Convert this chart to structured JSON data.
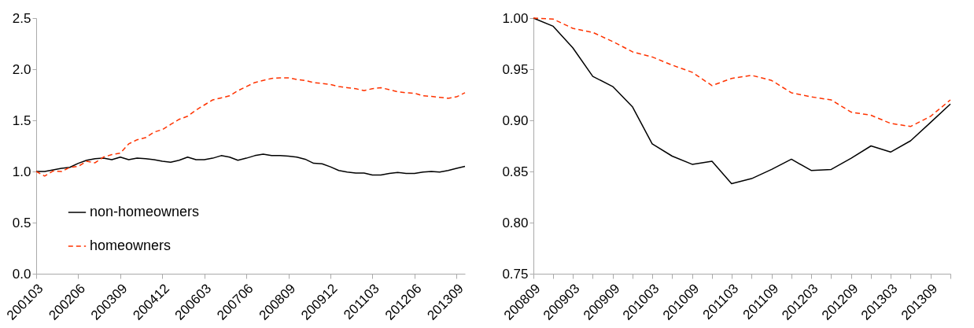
{
  "chart_data": [
    {
      "type": "line",
      "x": [
        "2001-03",
        "2001-06",
        "2001-09",
        "2001-12",
        "2002-03",
        "2002-06",
        "2002-09",
        "2002-12",
        "2003-03",
        "2003-06",
        "2003-09",
        "2003-12",
        "2004-03",
        "2004-06",
        "2004-09",
        "2004-12",
        "2005-03",
        "2005-06",
        "2005-09",
        "2005-12",
        "2006-03",
        "2006-06",
        "2006-09",
        "2006-12",
        "2007-03",
        "2007-06",
        "2007-09",
        "2007-12",
        "2008-03",
        "2008-06",
        "2008-09",
        "2008-12",
        "2009-03",
        "2009-06",
        "2009-09",
        "2009-12",
        "2010-03",
        "2010-06",
        "2010-09",
        "2010-12",
        "2011-03",
        "2011-06",
        "2011-09",
        "2011-12",
        "2012-03",
        "2012-06",
        "2012-09",
        "2012-12",
        "2013-03",
        "2013-06",
        "2013-09",
        "2013-12"
      ],
      "series": [
        {
          "name": "non-homeowners",
          "color": "#000000",
          "line_style": "solid",
          "values": [
            1.0,
            1.0,
            1.015,
            1.03,
            1.04,
            1.08,
            1.11,
            1.125,
            1.13,
            1.115,
            1.14,
            1.115,
            1.13,
            1.125,
            1.115,
            1.1,
            1.09,
            1.11,
            1.14,
            1.115,
            1.115,
            1.13,
            1.155,
            1.14,
            1.11,
            1.13,
            1.155,
            1.17,
            1.155,
            1.155,
            1.15,
            1.14,
            1.12,
            1.08,
            1.075,
            1.045,
            1.01,
            0.995,
            0.985,
            0.985,
            0.965,
            0.965,
            0.98,
            0.99,
            0.98,
            0.98,
            0.995,
            1.0,
            0.995,
            1.01,
            1.03,
            1.05
          ]
        },
        {
          "name": "homeowners",
          "color": "#ff3300",
          "line_style": "dashed",
          "values": [
            1.0,
            0.955,
            1.005,
            1.0,
            1.04,
            1.05,
            1.1,
            1.085,
            1.14,
            1.165,
            1.18,
            1.27,
            1.31,
            1.33,
            1.385,
            1.41,
            1.46,
            1.51,
            1.54,
            1.6,
            1.65,
            1.7,
            1.72,
            1.74,
            1.79,
            1.83,
            1.87,
            1.89,
            1.91,
            1.915,
            1.915,
            1.9,
            1.89,
            1.87,
            1.86,
            1.85,
            1.83,
            1.82,
            1.81,
            1.79,
            1.81,
            1.82,
            1.8,
            1.78,
            1.77,
            1.765,
            1.74,
            1.735,
            1.725,
            1.715,
            1.73,
            1.77
          ]
        }
      ],
      "xlim": [
        "2001-03",
        "2013-12"
      ],
      "xticks": [
        {
          "value": "2001-03",
          "label": "200103"
        },
        {
          "value": "2002-06",
          "label": "200206"
        },
        {
          "value": "2003-09",
          "label": "200309"
        },
        {
          "value": "2004-12",
          "label": "200412"
        },
        {
          "value": "2006-03",
          "label": "200603"
        },
        {
          "value": "2007-06",
          "label": "200706"
        },
        {
          "value": "2008-09",
          "label": "200809"
        },
        {
          "value": "2009-12",
          "label": "200912"
        },
        {
          "value": "2011-03",
          "label": "201103"
        },
        {
          "value": "2012-06",
          "label": "201206"
        },
        {
          "value": "2013-09",
          "label": "201309"
        }
      ],
      "ylim": [
        0,
        2.5
      ],
      "yticks": [
        {
          "value": 0,
          "label": "0.0"
        },
        0.5,
        {
          "value": 1,
          "label": "1.0"
        },
        1.5,
        {
          "value": 2,
          "label": "2.0"
        },
        2.5
      ],
      "legend": "bottom left"
    },
    {
      "type": "line",
      "x": [
        "2008-09",
        "2008-12",
        "2009-03",
        "2009-06",
        "2009-09",
        "2009-12",
        "2010-03",
        "2010-06",
        "2010-09",
        "2010-12",
        "2011-03",
        "2011-06",
        "2011-09",
        "2011-12",
        "2012-03",
        "2012-06",
        "2012-09",
        "2012-12",
        "2013-03",
        "2013-06",
        "2013-09",
        "2013-12"
      ],
      "series": [
        {
          "name": "non-homeowners",
          "color": "#000000",
          "line_style": "solid",
          "values": [
            1.0,
            0.992,
            0.971,
            0.943,
            0.933,
            0.913,
            0.877,
            0.865,
            0.857,
            0.86,
            0.838,
            0.843,
            0.852,
            0.862,
            0.851,
            0.852,
            0.863,
            0.875,
            0.869,
            0.88,
            0.898,
            0.916
          ]
        },
        {
          "name": "homeowners",
          "color": "#ff3300",
          "line_style": "dashed",
          "values": [
            1.0,
            0.999,
            0.99,
            0.986,
            0.977,
            0.967,
            0.962,
            0.954,
            0.947,
            0.934,
            0.941,
            0.944,
            0.939,
            0.927,
            0.923,
            0.92,
            0.908,
            0.905,
            0.897,
            0.894,
            0.904,
            0.92
          ]
        }
      ],
      "xlim": [
        "2008-09",
        "2013-12"
      ],
      "xticks": [
        {
          "value": "2008-09",
          "label": "200809"
        },
        {
          "value": "2008-12",
          "label": null
        },
        {
          "value": "2009-03",
          "label": "200903"
        },
        {
          "value": "2009-06",
          "label": null
        },
        {
          "value": "2009-09",
          "label": "200909"
        },
        {
          "value": "2009-12",
          "label": null
        },
        {
          "value": "2010-03",
          "label": "201003"
        },
        {
          "value": "2010-06",
          "label": null
        },
        {
          "value": "2010-09",
          "label": "201009"
        },
        {
          "value": "2010-12",
          "label": null
        },
        {
          "value": "2011-03",
          "label": "201103"
        },
        {
          "value": "2011-06",
          "label": null
        },
        {
          "value": "2011-09",
          "label": "201109"
        },
        {
          "value": "2011-12",
          "label": null
        },
        {
          "value": "2012-03",
          "label": "201203"
        },
        {
          "value": "2012-06",
          "label": null
        },
        {
          "value": "2012-09",
          "label": "201209"
        },
        {
          "value": "2012-12",
          "label": null
        },
        {
          "value": "2013-03",
          "label": "201303"
        },
        {
          "value": "2013-06",
          "label": null
        },
        {
          "value": "2013-09",
          "label": "201309"
        },
        {
          "value": "2013-12",
          "label": null
        }
      ],
      "ylim": [
        0.75,
        1.0
      ],
      "yticks": [
        {
          "value": 0.75,
          "label": "0.75"
        },
        {
          "value": 0.8,
          "label": "0.80"
        },
        {
          "value": 0.85,
          "label": "0.85"
        },
        {
          "value": 0.9,
          "label": "0.90"
        },
        {
          "value": 0.95,
          "label": "0.95"
        },
        {
          "value": 1.0,
          "label": "1.00"
        }
      ],
      "legend": "bottom left"
    }
  ]
}
